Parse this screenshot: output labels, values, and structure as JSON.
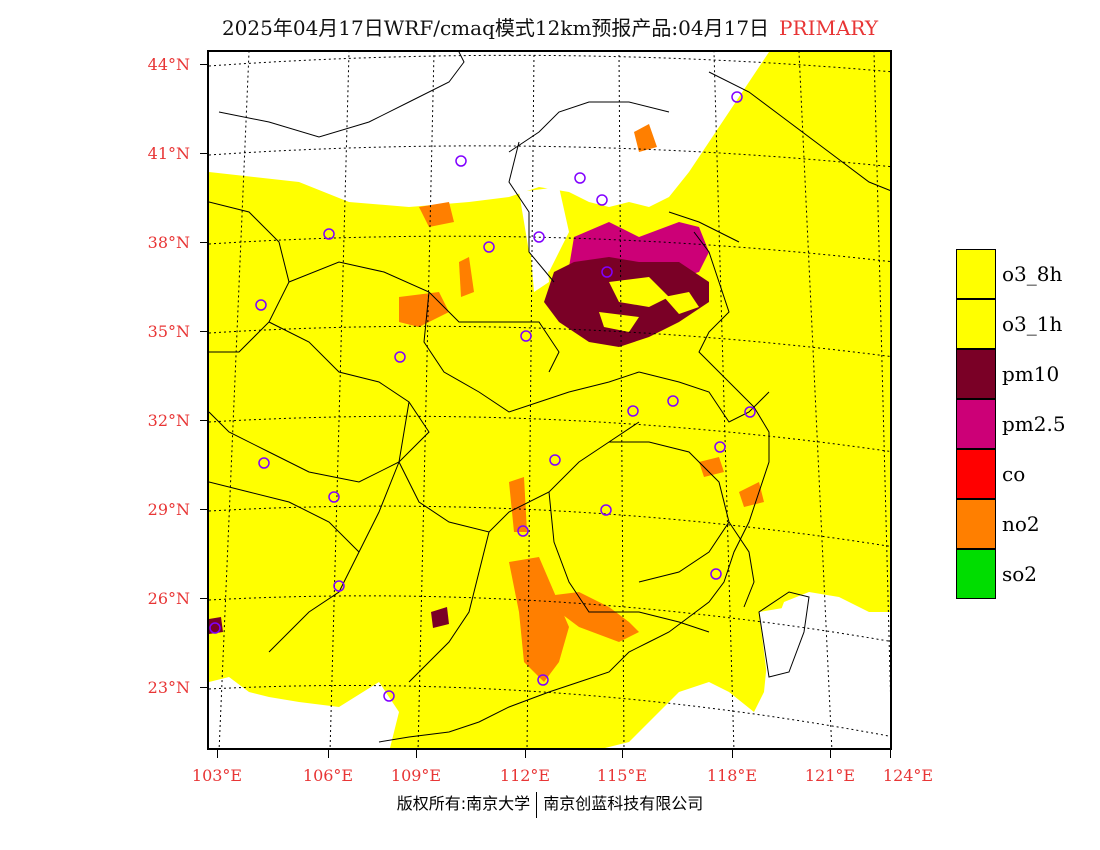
{
  "title": {
    "main": "2025年04月17日WRF/cmaq模式12km预报产品:04月17日",
    "tag": "PRIMARY"
  },
  "map": {
    "lat_labels": [
      "44°N",
      "41°N",
      "38°N",
      "35°N",
      "32°N",
      "29°N",
      "26°N",
      "23°N"
    ],
    "lon_labels": [
      "103°E",
      "106°E",
      "109°E",
      "112°E",
      "115°E",
      "118°E",
      "121°E",
      "124°E"
    ],
    "layers": {
      "o3": "o3_8h",
      "pm10": "pm10",
      "pm25": "pm2.5",
      "no2": "no2"
    },
    "station_marker": "circle-icon",
    "colors": {
      "o3_8h": "#ffff00",
      "pm10": "#7a0026",
      "pm25": "#cc0077",
      "no2": "#ff7f00",
      "no_data": "#ffffff"
    }
  },
  "legend": [
    {
      "label": "o3_8h",
      "color": "#ffff00"
    },
    {
      "label": "o3_1h",
      "color": "#ffff00"
    },
    {
      "label": "pm10",
      "color": "#7a0026"
    },
    {
      "label": "pm2.5",
      "color": "#cc0077"
    },
    {
      "label": "co",
      "color": "#ff0000"
    },
    {
      "label": "no2",
      "color": "#ff7f00"
    },
    {
      "label": "so2",
      "color": "#00dd00"
    }
  ],
  "footer": {
    "left": "版权所有:南京大学",
    "right": "南京创蓝科技有限公司"
  }
}
